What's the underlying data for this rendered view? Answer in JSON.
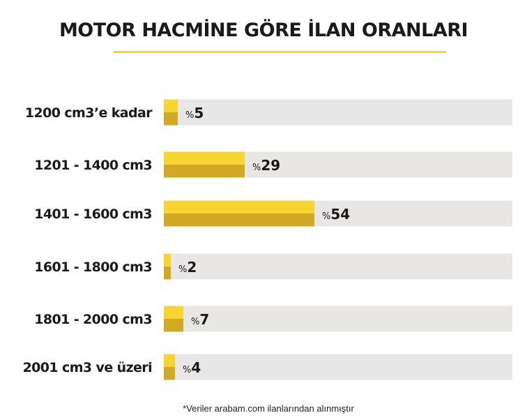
{
  "title": "MOTOR HACMİNE GÖRE İLAN ORANLARI",
  "footnote": "*Veriler arabam.com ilanlarından alınmıştır",
  "colors": {
    "track": "#e8e7e5",
    "bar_top": "#f7d531",
    "bar_bottom": "#d2a924",
    "underline": "#f7d531",
    "text": "#1a1a1a"
  },
  "chart_data": {
    "type": "bar",
    "orientation": "horizontal",
    "categories": [
      "1200 cm3’e kadar",
      "1201 - 1400 cm3",
      "1401 - 1600 cm3",
      "1601 - 1800 cm3",
      "1801 - 2000 cm3",
      "2001 cm3 ve üzeri"
    ],
    "values": [
      5,
      29,
      54,
      2,
      7,
      4
    ],
    "value_prefix": "%",
    "unit": "percent",
    "xlim": [
      0,
      100
    ],
    "grid": false,
    "legend": "none"
  }
}
